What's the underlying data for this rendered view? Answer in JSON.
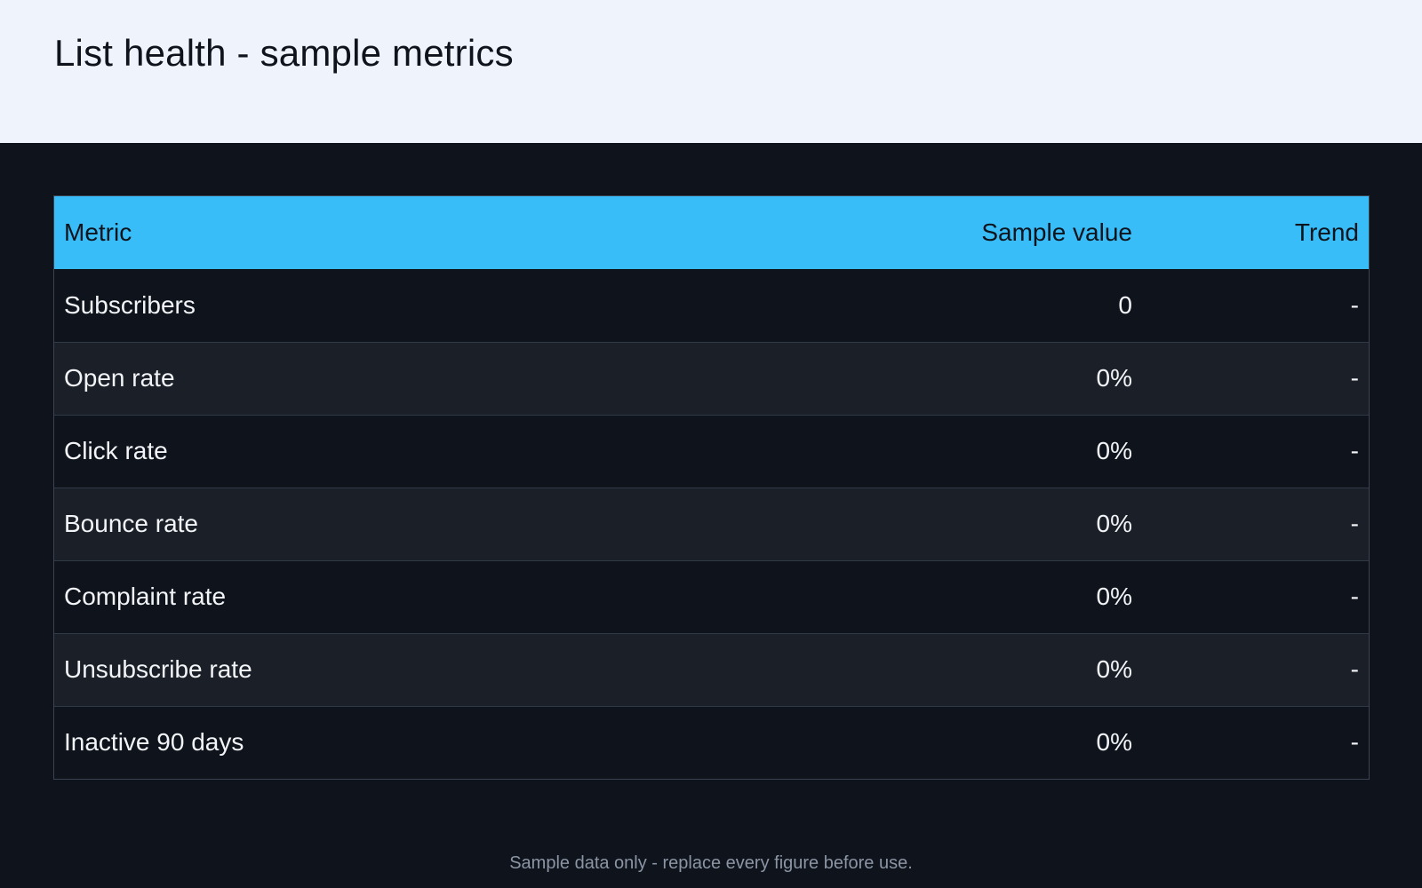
{
  "header": {
    "title": "List health - sample metrics"
  },
  "table": {
    "columns": [
      "Metric",
      "Sample value",
      "Trend"
    ],
    "rows": [
      {
        "metric": "Subscribers",
        "value": "0",
        "trend": "-"
      },
      {
        "metric": "Open rate",
        "value": "0%",
        "trend": "-"
      },
      {
        "metric": "Click rate",
        "value": "0%",
        "trend": "-"
      },
      {
        "metric": "Bounce rate",
        "value": "0%",
        "trend": "-"
      },
      {
        "metric": "Complaint rate",
        "value": "0%",
        "trend": "-"
      },
      {
        "metric": "Unsubscribe rate",
        "value": "0%",
        "trend": "-"
      },
      {
        "metric": "Inactive 90 days",
        "value": "0%",
        "trend": "-"
      }
    ]
  },
  "footer": {
    "note": "Sample data only - replace every figure before use."
  },
  "colors": {
    "header_background": "#eff4fc",
    "page_background": "#0e131c",
    "table_header_background": "#38bdf8",
    "row_alt_background": "#1a1f28",
    "text_light": "#f2f4f7",
    "text_dark": "#0e131c",
    "footer_text": "#8c95a4"
  }
}
